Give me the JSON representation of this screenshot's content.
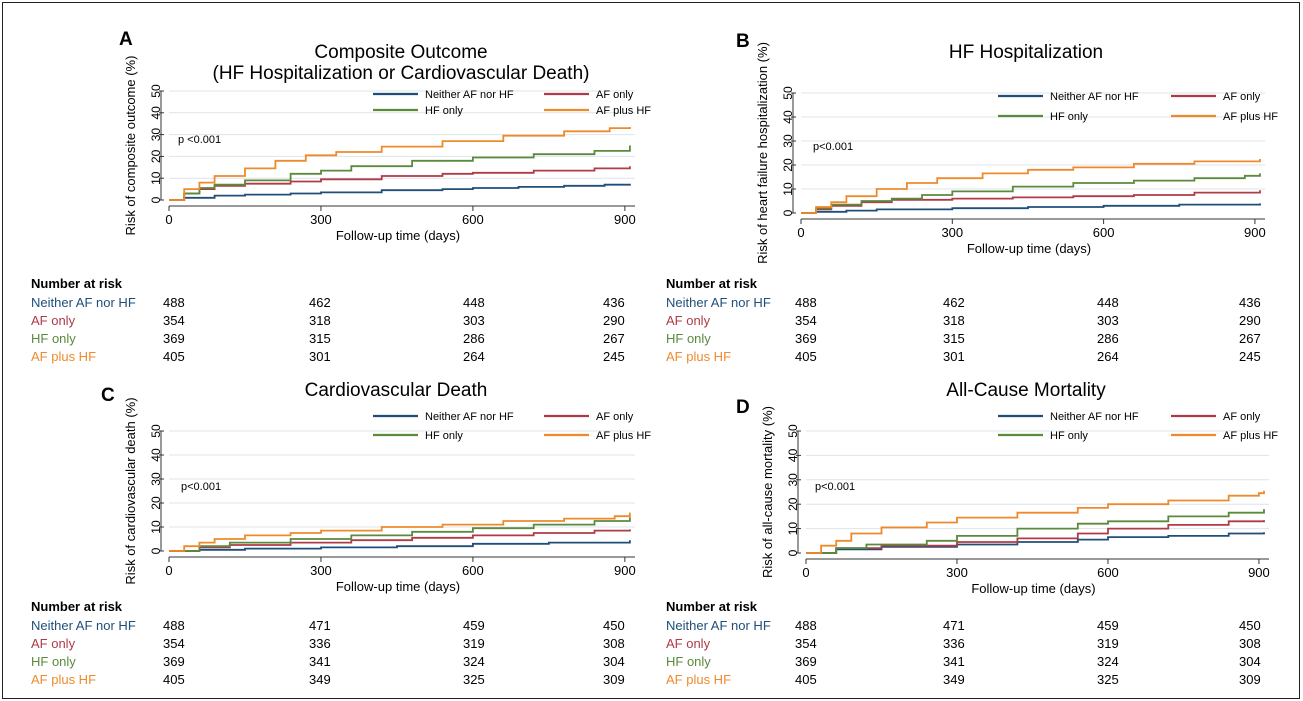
{
  "colors": {
    "Neither AF nor HF": "#1f4e79",
    "AF only": "#b03a48",
    "HF only": "#5a8a3c",
    "AF plus HF": "#ef8a2c",
    "grid": "#dde4ea"
  },
  "chart_data": [
    {
      "panel": "A",
      "type": "line",
      "title": [
        "Composite Outcome",
        "(HF Hospitalization or Cardiovascular Death)"
      ],
      "xlabel": "Follow-up time (days)",
      "ylabel": "Risk of composite outcome (%)",
      "xlim": [
        0,
        920
      ],
      "ylim": [
        0,
        50
      ],
      "xticks": [
        0,
        300,
        600,
        900
      ],
      "yticks": [
        0,
        10,
        20,
        30,
        40,
        50
      ],
      "grid": true,
      "legend": "top-right",
      "annotation": "p <0.001",
      "series": [
        {
          "name": "Neither AF nor HF",
          "x": [
            0,
            30,
            90,
            150,
            240,
            300,
            420,
            540,
            600,
            690,
            780,
            860,
            910
          ],
          "y": [
            0,
            1,
            2,
            2.5,
            3,
            3.5,
            4.5,
            5,
            5.5,
            6,
            6.5,
            7,
            7.5
          ]
        },
        {
          "name": "AF only",
          "x": [
            0,
            30,
            60,
            90,
            150,
            240,
            300,
            420,
            540,
            600,
            720,
            840,
            910
          ],
          "y": [
            0,
            3,
            5,
            6.5,
            7.5,
            8.5,
            9.5,
            11,
            12,
            12.5,
            13.5,
            14.5,
            15.5
          ]
        },
        {
          "name": "HF only",
          "x": [
            0,
            30,
            60,
            90,
            150,
            240,
            300,
            360,
            480,
            600,
            720,
            840,
            910
          ],
          "y": [
            0,
            3,
            5.5,
            7,
            9,
            12,
            13.5,
            15.5,
            18,
            19.5,
            21,
            22.5,
            25
          ]
        },
        {
          "name": "AF plus HF",
          "x": [
            0,
            30,
            60,
            90,
            150,
            210,
            270,
            330,
            420,
            540,
            660,
            780,
            870,
            910
          ],
          "y": [
            0,
            5,
            8,
            11,
            14.5,
            18,
            20.5,
            22,
            24.5,
            27,
            29.5,
            31.5,
            33,
            33.5
          ]
        }
      ],
      "risk": {
        "title": "Number at risk",
        "times": [
          0,
          300,
          600,
          900
        ],
        "groups": [
          {
            "name": "Neither AF nor HF",
            "values": [
              488,
              462,
              448,
              436
            ]
          },
          {
            "name": "AF only",
            "values": [
              354,
              318,
              303,
              290
            ]
          },
          {
            "name": "HF only",
            "values": [
              369,
              315,
              286,
              267
            ]
          },
          {
            "name": "AF plus HF",
            "values": [
              405,
              301,
              264,
              245
            ]
          }
        ]
      }
    },
    {
      "panel": "B",
      "type": "line",
      "title": [
        "HF Hospitalization"
      ],
      "xlabel": "Follow-up time (days)",
      "ylabel": "Risk of heart failure hospitalization (%)",
      "xlim": [
        0,
        920
      ],
      "ylim": [
        0,
        50
      ],
      "xticks": [
        0,
        300,
        600,
        900
      ],
      "yticks": [
        0,
        10,
        20,
        30,
        40,
        50
      ],
      "grid": true,
      "legend": "top-right",
      "annotation": "p<0.001",
      "series": [
        {
          "name": "Neither AF nor HF",
          "x": [
            0,
            30,
            90,
            150,
            300,
            450,
            600,
            750,
            910
          ],
          "y": [
            0,
            0.5,
            1,
            1.5,
            2,
            2.5,
            3,
            3.5,
            4
          ]
        },
        {
          "name": "AF only",
          "x": [
            0,
            30,
            60,
            120,
            180,
            300,
            420,
            540,
            660,
            780,
            910
          ],
          "y": [
            0,
            1.5,
            3,
            4.5,
            5.5,
            6,
            6.5,
            7,
            7.5,
            8.5,
            9.5
          ]
        },
        {
          "name": "HF only",
          "x": [
            0,
            30,
            60,
            120,
            180,
            240,
            300,
            420,
            540,
            660,
            780,
            880,
            910
          ],
          "y": [
            0,
            2,
            3.5,
            5,
            6,
            7.5,
            9,
            11,
            12.5,
            13.5,
            14.5,
            15.5,
            16.5
          ]
        },
        {
          "name": "AF plus HF",
          "x": [
            0,
            30,
            60,
            90,
            150,
            210,
            270,
            360,
            450,
            540,
            660,
            780,
            910
          ],
          "y": [
            0,
            2.5,
            4.5,
            7,
            10,
            12.5,
            14.5,
            16.5,
            18,
            19,
            20.5,
            21.5,
            22.5
          ]
        }
      ],
      "risk": {
        "title": "Number at risk",
        "times": [
          0,
          300,
          600,
          900
        ],
        "groups": [
          {
            "name": "Neither AF nor HF",
            "values": [
              488,
              462,
              448,
              436
            ]
          },
          {
            "name": "AF only",
            "values": [
              354,
              318,
              303,
              290
            ]
          },
          {
            "name": "HF only",
            "values": [
              369,
              315,
              286,
              267
            ]
          },
          {
            "name": "AF plus HF",
            "values": [
              405,
              301,
              264,
              245
            ]
          }
        ]
      }
    },
    {
      "panel": "C",
      "type": "line",
      "title": [
        "Cardiovascular Death"
      ],
      "xlabel": "Follow-up time (days)",
      "ylabel": "Risk of cardiovascular death (%)",
      "xlim": [
        0,
        920
      ],
      "ylim": [
        0,
        50
      ],
      "xticks": [
        0,
        300,
        600,
        900
      ],
      "yticks": [
        0,
        10,
        20,
        30,
        40,
        50
      ],
      "grid": true,
      "legend": "top-right",
      "annotation": "p<0.001",
      "series": [
        {
          "name": "Neither AF nor HF",
          "x": [
            0,
            60,
            150,
            300,
            450,
            600,
            750,
            910
          ],
          "y": [
            0,
            0.5,
            1,
            1.5,
            2,
            3,
            3.5,
            4.5
          ]
        },
        {
          "name": "AF only",
          "x": [
            0,
            60,
            120,
            240,
            360,
            480,
            600,
            720,
            840,
            910
          ],
          "y": [
            0,
            1.5,
            2.5,
            3.5,
            4.5,
            5.5,
            6.5,
            7.5,
            8.5,
            9
          ]
        },
        {
          "name": "HF only",
          "x": [
            0,
            60,
            120,
            240,
            360,
            480,
            600,
            720,
            840,
            910
          ],
          "y": [
            0,
            2,
            3.5,
            5,
            6.5,
            8,
            9.5,
            11,
            12.5,
            14
          ]
        },
        {
          "name": "AF plus HF",
          "x": [
            0,
            30,
            60,
            90,
            150,
            240,
            300,
            420,
            540,
            660,
            780,
            880,
            910
          ],
          "y": [
            0,
            2,
            3.5,
            5,
            6.5,
            7.5,
            8.5,
            10,
            11,
            12.5,
            13.5,
            14.5,
            16
          ]
        }
      ],
      "risk": {
        "title": "Number at risk",
        "times": [
          0,
          300,
          600,
          900
        ],
        "groups": [
          {
            "name": "Neither AF nor HF",
            "values": [
              488,
              471,
              459,
              450
            ]
          },
          {
            "name": "AF only",
            "values": [
              354,
              336,
              319,
              308
            ]
          },
          {
            "name": "HF only",
            "values": [
              369,
              341,
              324,
              304
            ]
          },
          {
            "name": "AF plus HF",
            "values": [
              405,
              349,
              325,
              309
            ]
          }
        ]
      }
    },
    {
      "panel": "D",
      "type": "line",
      "title": [
        "All-Cause Mortality"
      ],
      "xlabel": "Follow-up time (days)",
      "ylabel": "Risk of all-cause mortality (%)",
      "xlim": [
        0,
        920
      ],
      "ylim": [
        0,
        50
      ],
      "xticks": [
        0,
        300,
        600,
        900
      ],
      "yticks": [
        0,
        10,
        20,
        30,
        40,
        50
      ],
      "grid": true,
      "legend": "top-right",
      "annotation": "p<0.001",
      "series": [
        {
          "name": "Neither AF nor HF",
          "x": [
            0,
            60,
            150,
            300,
            420,
            540,
            600,
            720,
            840,
            910
          ],
          "y": [
            0,
            1.5,
            2.5,
            3.5,
            4.5,
            5.5,
            6.5,
            7,
            8,
            8.5
          ]
        },
        {
          "name": "AF only",
          "x": [
            0,
            60,
            150,
            300,
            420,
            540,
            600,
            720,
            840,
            910
          ],
          "y": [
            0,
            2,
            3,
            4.5,
            6,
            8,
            10,
            11.5,
            13,
            13.5
          ]
        },
        {
          "name": "HF only",
          "x": [
            0,
            60,
            120,
            240,
            300,
            420,
            540,
            600,
            720,
            840,
            910
          ],
          "y": [
            0,
            2,
            3.5,
            5,
            7,
            10,
            12,
            13,
            15,
            16.5,
            18
          ]
        },
        {
          "name": "AF plus HF",
          "x": [
            0,
            30,
            60,
            90,
            150,
            240,
            300,
            420,
            540,
            600,
            720,
            840,
            900,
            910
          ],
          "y": [
            0,
            3,
            5,
            8,
            10.5,
            12.5,
            14.5,
            16.5,
            18.5,
            20,
            21.5,
            23.5,
            24.5,
            25.5
          ]
        }
      ],
      "risk": {
        "title": "Number at risk",
        "times": [
          0,
          300,
          600,
          900
        ],
        "groups": [
          {
            "name": "Neither AF nor HF",
            "values": [
              488,
              471,
              459,
              450
            ]
          },
          {
            "name": "AF only",
            "values": [
              354,
              336,
              319,
              308
            ]
          },
          {
            "name": "HF only",
            "values": [
              369,
              341,
              324,
              304
            ]
          },
          {
            "name": "AF plus HF",
            "values": [
              405,
              349,
              325,
              309
            ]
          }
        ]
      }
    }
  ]
}
